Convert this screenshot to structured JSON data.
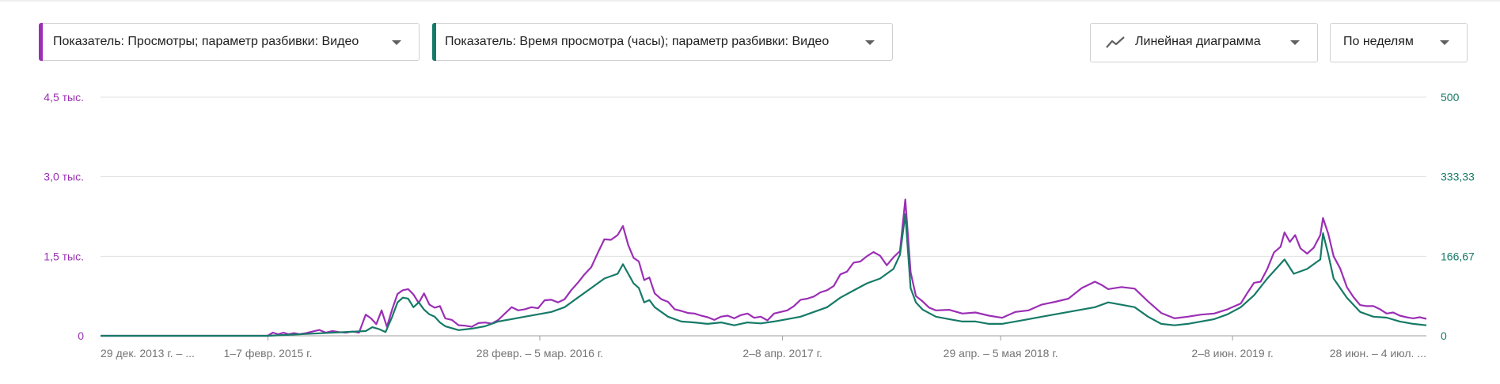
{
  "controls": {
    "metric1": {
      "label": "Показатель: Просмотры; параметр разбивки: Видео",
      "color": "#9b2fb5"
    },
    "metric2": {
      "label": "Показатель: Время просмотра (часы); параметр разбивки: Видео",
      "color": "#167a67"
    },
    "chart_type": {
      "label": "Линейная диаграмма",
      "icon": "line-chart-icon"
    },
    "granularity": {
      "label": "По неделям"
    }
  },
  "chart_data": {
    "type": "line",
    "y_left": {
      "ticks": [
        "0",
        "1,5 тыс.",
        "3,0 тыс.",
        "4,5 тыс."
      ],
      "range": [
        0,
        4500
      ],
      "color": "#9b2fb5"
    },
    "y_right": {
      "ticks": [
        "0",
        "166,67",
        "333,33",
        "500"
      ],
      "range": [
        0,
        500
      ],
      "color": "#167a67"
    },
    "x_tick_labels": [
      "29 дек. 2013 г. – ...",
      "1–7 февр. 2015 г.",
      "28 февр. – 5 мар. 2016 г.",
      "2–8 апр. 2017 г.",
      "29 апр. – 5 мая 2018 г.",
      "2–8 июн. 2019 г.",
      "28 июн. – 4 июл. ..."
    ],
    "x_tick_positions": [
      0,
      0.1263,
      0.3313,
      0.5144,
      0.6789,
      0.8538,
      1.0
    ],
    "grid": true,
    "series": [
      {
        "name": "Показатель: Просмотры",
        "axis": "left",
        "color": "#9b2fb5",
        "points": [
          [
            0,
            0
          ],
          [
            0.126,
            0
          ],
          [
            0.13,
            60
          ],
          [
            0.134,
            30
          ],
          [
            0.138,
            60
          ],
          [
            0.142,
            30
          ],
          [
            0.146,
            50
          ],
          [
            0.15,
            30
          ],
          [
            0.155,
            50
          ],
          [
            0.16,
            80
          ],
          [
            0.165,
            110
          ],
          [
            0.17,
            60
          ],
          [
            0.175,
            90
          ],
          [
            0.18,
            70
          ],
          [
            0.185,
            60
          ],
          [
            0.19,
            80
          ],
          [
            0.195,
            60
          ],
          [
            0.2,
            400
          ],
          [
            0.204,
            330
          ],
          [
            0.208,
            220
          ],
          [
            0.212,
            480
          ],
          [
            0.216,
            170
          ],
          [
            0.22,
            500
          ],
          [
            0.224,
            790
          ],
          [
            0.228,
            860
          ],
          [
            0.232,
            880
          ],
          [
            0.236,
            780
          ],
          [
            0.24,
            620
          ],
          [
            0.244,
            800
          ],
          [
            0.248,
            590
          ],
          [
            0.252,
            530
          ],
          [
            0.256,
            560
          ],
          [
            0.26,
            330
          ],
          [
            0.265,
            300
          ],
          [
            0.27,
            200
          ],
          [
            0.275,
            190
          ],
          [
            0.28,
            170
          ],
          [
            0.285,
            240
          ],
          [
            0.29,
            250
          ],
          [
            0.295,
            230
          ],
          [
            0.3,
            300
          ],
          [
            0.305,
            420
          ],
          [
            0.31,
            540
          ],
          [
            0.315,
            480
          ],
          [
            0.32,
            500
          ],
          [
            0.325,
            540
          ],
          [
            0.33,
            520
          ],
          [
            0.335,
            670
          ],
          [
            0.34,
            680
          ],
          [
            0.345,
            630
          ],
          [
            0.35,
            690
          ],
          [
            0.355,
            860
          ],
          [
            0.36,
            1000
          ],
          [
            0.365,
            1160
          ],
          [
            0.37,
            1290
          ],
          [
            0.375,
            1560
          ],
          [
            0.38,
            1820
          ],
          [
            0.385,
            1810
          ],
          [
            0.39,
            1900
          ],
          [
            0.394,
            2070
          ],
          [
            0.398,
            1710
          ],
          [
            0.402,
            1470
          ],
          [
            0.406,
            1400
          ],
          [
            0.41,
            1050
          ],
          [
            0.414,
            1100
          ],
          [
            0.418,
            800
          ],
          [
            0.423,
            690
          ],
          [
            0.428,
            640
          ],
          [
            0.433,
            500
          ],
          [
            0.438,
            470
          ],
          [
            0.443,
            430
          ],
          [
            0.448,
            420
          ],
          [
            0.453,
            380
          ],
          [
            0.458,
            350
          ],
          [
            0.463,
            300
          ],
          [
            0.468,
            360
          ],
          [
            0.473,
            380
          ],
          [
            0.478,
            330
          ],
          [
            0.483,
            390
          ],
          [
            0.488,
            420
          ],
          [
            0.493,
            340
          ],
          [
            0.498,
            360
          ],
          [
            0.503,
            290
          ],
          [
            0.508,
            420
          ],
          [
            0.513,
            450
          ],
          [
            0.518,
            480
          ],
          [
            0.523,
            560
          ],
          [
            0.528,
            680
          ],
          [
            0.533,
            700
          ],
          [
            0.538,
            740
          ],
          [
            0.543,
            820
          ],
          [
            0.548,
            860
          ],
          [
            0.553,
            940
          ],
          [
            0.558,
            1160
          ],
          [
            0.563,
            1210
          ],
          [
            0.568,
            1380
          ],
          [
            0.573,
            1400
          ],
          [
            0.578,
            1500
          ],
          [
            0.583,
            1580
          ],
          [
            0.588,
            1510
          ],
          [
            0.593,
            1330
          ],
          [
            0.598,
            1480
          ],
          [
            0.603,
            1600
          ],
          [
            0.607,
            2570
          ],
          [
            0.611,
            1200
          ],
          [
            0.615,
            750
          ],
          [
            0.62,
            650
          ],
          [
            0.625,
            530
          ],
          [
            0.63,
            480
          ],
          [
            0.64,
            490
          ],
          [
            0.65,
            420
          ],
          [
            0.66,
            440
          ],
          [
            0.67,
            380
          ],
          [
            0.68,
            340
          ],
          [
            0.69,
            450
          ],
          [
            0.7,
            480
          ],
          [
            0.71,
            590
          ],
          [
            0.72,
            640
          ],
          [
            0.73,
            700
          ],
          [
            0.74,
            900
          ],
          [
            0.75,
            1020
          ],
          [
            0.755,
            960
          ],
          [
            0.76,
            880
          ],
          [
            0.77,
            920
          ],
          [
            0.78,
            890
          ],
          [
            0.79,
            650
          ],
          [
            0.8,
            430
          ],
          [
            0.81,
            330
          ],
          [
            0.82,
            360
          ],
          [
            0.83,
            400
          ],
          [
            0.84,
            420
          ],
          [
            0.85,
            500
          ],
          [
            0.86,
            610
          ],
          [
            0.865,
            810
          ],
          [
            0.87,
            1000
          ],
          [
            0.875,
            1020
          ],
          [
            0.88,
            1260
          ],
          [
            0.885,
            1570
          ],
          [
            0.89,
            1680
          ],
          [
            0.893,
            1950
          ],
          [
            0.897,
            1770
          ],
          [
            0.901,
            1900
          ],
          [
            0.905,
            1650
          ],
          [
            0.91,
            1550
          ],
          [
            0.915,
            1660
          ],
          [
            0.92,
            1900
          ],
          [
            0.922,
            2220
          ],
          [
            0.926,
            1920
          ],
          [
            0.93,
            1500
          ],
          [
            0.935,
            1270
          ],
          [
            0.94,
            920
          ],
          [
            0.945,
            730
          ],
          [
            0.95,
            580
          ],
          [
            0.955,
            560
          ],
          [
            0.96,
            560
          ],
          [
            0.965,
            500
          ],
          [
            0.97,
            420
          ],
          [
            0.975,
            440
          ],
          [
            0.98,
            380
          ],
          [
            0.985,
            350
          ],
          [
            0.99,
            330
          ],
          [
            0.995,
            350
          ],
          [
            1.0,
            320
          ]
        ]
      },
      {
        "name": "Показатель: Время просмотра (часы)",
        "axis": "right",
        "color": "#167a67",
        "points": [
          [
            0,
            0
          ],
          [
            0.126,
            0
          ],
          [
            0.2,
            10
          ],
          [
            0.205,
            18
          ],
          [
            0.21,
            14
          ],
          [
            0.215,
            8
          ],
          [
            0.22,
            40
          ],
          [
            0.224,
            70
          ],
          [
            0.228,
            80
          ],
          [
            0.232,
            78
          ],
          [
            0.236,
            60
          ],
          [
            0.24,
            70
          ],
          [
            0.244,
            55
          ],
          [
            0.248,
            45
          ],
          [
            0.252,
            40
          ],
          [
            0.256,
            28
          ],
          [
            0.26,
            20
          ],
          [
            0.27,
            12
          ],
          [
            0.28,
            15
          ],
          [
            0.29,
            20
          ],
          [
            0.3,
            30
          ],
          [
            0.31,
            35
          ],
          [
            0.32,
            40
          ],
          [
            0.33,
            45
          ],
          [
            0.34,
            50
          ],
          [
            0.35,
            60
          ],
          [
            0.36,
            80
          ],
          [
            0.37,
            100
          ],
          [
            0.38,
            120
          ],
          [
            0.39,
            130
          ],
          [
            0.394,
            150
          ],
          [
            0.398,
            130
          ],
          [
            0.402,
            110
          ],
          [
            0.406,
            100
          ],
          [
            0.41,
            70
          ],
          [
            0.414,
            75
          ],
          [
            0.418,
            60
          ],
          [
            0.423,
            50
          ],
          [
            0.428,
            40
          ],
          [
            0.438,
            30
          ],
          [
            0.448,
            28
          ],
          [
            0.458,
            25
          ],
          [
            0.468,
            28
          ],
          [
            0.478,
            22
          ],
          [
            0.488,
            28
          ],
          [
            0.498,
            26
          ],
          [
            0.508,
            30
          ],
          [
            0.518,
            35
          ],
          [
            0.528,
            40
          ],
          [
            0.538,
            50
          ],
          [
            0.548,
            60
          ],
          [
            0.558,
            80
          ],
          [
            0.568,
            95
          ],
          [
            0.578,
            110
          ],
          [
            0.588,
            120
          ],
          [
            0.598,
            140
          ],
          [
            0.603,
            170
          ],
          [
            0.607,
            255
          ],
          [
            0.611,
            100
          ],
          [
            0.615,
            70
          ],
          [
            0.62,
            55
          ],
          [
            0.63,
            40
          ],
          [
            0.64,
            35
          ],
          [
            0.65,
            30
          ],
          [
            0.66,
            30
          ],
          [
            0.67,
            25
          ],
          [
            0.68,
            25
          ],
          [
            0.69,
            30
          ],
          [
            0.7,
            35
          ],
          [
            0.71,
            40
          ],
          [
            0.72,
            45
          ],
          [
            0.73,
            50
          ],
          [
            0.74,
            55
          ],
          [
            0.75,
            60
          ],
          [
            0.76,
            70
          ],
          [
            0.77,
            65
          ],
          [
            0.78,
            60
          ],
          [
            0.79,
            40
          ],
          [
            0.8,
            25
          ],
          [
            0.81,
            22
          ],
          [
            0.82,
            25
          ],
          [
            0.83,
            30
          ],
          [
            0.84,
            35
          ],
          [
            0.85,
            45
          ],
          [
            0.86,
            60
          ],
          [
            0.87,
            85
          ],
          [
            0.88,
            120
          ],
          [
            0.893,
            160
          ],
          [
            0.9,
            130
          ],
          [
            0.91,
            140
          ],
          [
            0.915,
            150
          ],
          [
            0.92,
            160
          ],
          [
            0.922,
            215
          ],
          [
            0.926,
            170
          ],
          [
            0.93,
            120
          ],
          [
            0.935,
            100
          ],
          [
            0.94,
            80
          ],
          [
            0.95,
            50
          ],
          [
            0.96,
            40
          ],
          [
            0.97,
            38
          ],
          [
            0.98,
            30
          ],
          [
            0.99,
            25
          ],
          [
            1.0,
            22
          ]
        ]
      }
    ]
  }
}
